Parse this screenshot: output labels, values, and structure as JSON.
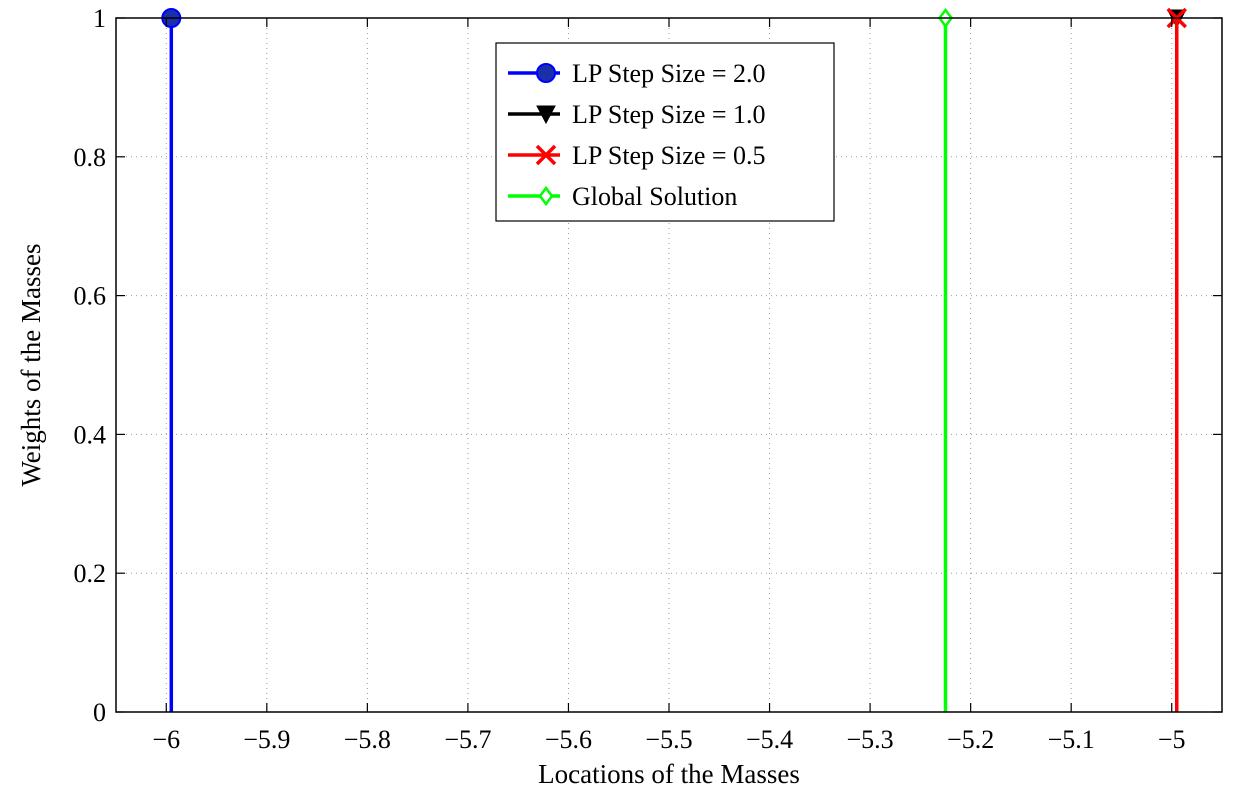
{
  "chart_data": {
    "type": "stem",
    "title": "",
    "xlabel": "Locations of the Masses",
    "ylabel": "Weights of the Masses",
    "xlim": [
      -6.05,
      -4.95
    ],
    "ylim": [
      0,
      1
    ],
    "x_ticks": [
      -6,
      -5.9,
      -5.8,
      -5.7,
      -5.6,
      -5.5,
      -5.4,
      -5.3,
      -5.2,
      -5.1,
      -5
    ],
    "x_tick_labels": [
      "−6",
      "−5.9",
      "−5.8",
      "−5.7",
      "−5.6",
      "−5.5",
      "−5.4",
      "−5.3",
      "−5.2",
      "−5.1",
      "−5"
    ],
    "y_ticks": [
      0,
      0.2,
      0.4,
      0.6,
      0.8,
      1
    ],
    "y_tick_labels": [
      "0",
      "0.2",
      "0.4",
      "0.6",
      "0.8",
      "1"
    ],
    "grid": true,
    "legend_position": "top-center",
    "series": [
      {
        "name": "LP Step Size = 2.0",
        "color": "#0000ff",
        "marker": "filled-circle",
        "x": [
          -5.995
        ],
        "y": [
          1
        ]
      },
      {
        "name": "LP Step Size = 1.0",
        "color": "#000000",
        "marker": "filled-triangle-down",
        "x": [
          -4.995
        ],
        "y": [
          1
        ]
      },
      {
        "name": "LP Step Size = 0.5",
        "color": "#ff0000",
        "marker": "x-cross",
        "x": [
          -4.995
        ],
        "y": [
          1
        ]
      },
      {
        "name": "Global Solution",
        "color": "#00ff00",
        "marker": "diamond",
        "x": [
          -5.225
        ],
        "y": [
          1
        ]
      }
    ]
  }
}
